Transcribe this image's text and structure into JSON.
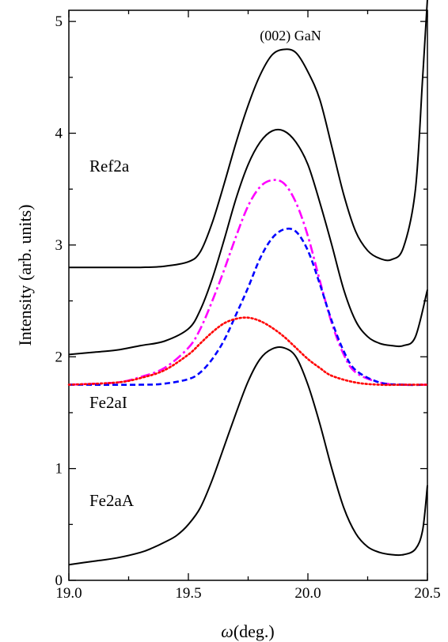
{
  "chart_data": {
    "type": "line",
    "title": "",
    "xlabel_symbol": "ω",
    "xlabel_unit": "(deg.)",
    "ylabel": "Intensity (arb. units)",
    "xlim": [
      19.0,
      20.5
    ],
    "ylim": [
      0,
      5.1
    ],
    "x_ticks": [
      "19.0",
      "19.5",
      "20.0",
      "20.5"
    ],
    "y_ticks": [
      "0",
      "1",
      "2",
      "3",
      "4",
      "5"
    ],
    "grid": false,
    "annotations": {
      "peak": "(002) GaN",
      "ref": "Ref2a",
      "fe2ai": "Fe2aI",
      "fe2aa": "Fe2aA"
    },
    "series": [
      {
        "color": "#000000",
        "style": "solid",
        "x": [
          19.0,
          19.1,
          19.2,
          19.3,
          19.4,
          19.5,
          19.55,
          19.6,
          19.65,
          19.7,
          19.75,
          19.8,
          19.85,
          19.9,
          19.95,
          20.0,
          20.05,
          20.1,
          20.15,
          20.2,
          20.25,
          20.3,
          20.35,
          20.4,
          20.45,
          20.48,
          20.5
        ],
        "y": [
          2.8,
          2.8,
          2.8,
          2.8,
          2.81,
          2.85,
          2.94,
          3.2,
          3.55,
          3.92,
          4.25,
          4.52,
          4.7,
          4.75,
          4.72,
          4.55,
          4.3,
          3.88,
          3.45,
          3.12,
          2.95,
          2.88,
          2.87,
          2.98,
          3.5,
          4.5,
          5.2
        ]
      },
      {
        "color": "#000000",
        "style": "solid",
        "x": [
          19.0,
          19.1,
          19.2,
          19.3,
          19.4,
          19.5,
          19.55,
          19.6,
          19.65,
          19.7,
          19.75,
          19.8,
          19.85,
          19.9,
          19.95,
          20.0,
          20.05,
          20.1,
          20.15,
          20.2,
          20.25,
          20.3,
          20.35,
          20.4,
          20.45,
          20.5
        ],
        "y": [
          2.02,
          2.04,
          2.06,
          2.1,
          2.14,
          2.25,
          2.42,
          2.7,
          3.05,
          3.42,
          3.72,
          3.92,
          4.02,
          4.02,
          3.92,
          3.72,
          3.38,
          3.0,
          2.6,
          2.32,
          2.18,
          2.12,
          2.1,
          2.1,
          2.18,
          2.6
        ]
      },
      {
        "color": "#ff00ff",
        "style": "dashdot",
        "x": [
          19.0,
          19.2,
          19.3,
          19.4,
          19.5,
          19.55,
          19.6,
          19.65,
          19.7,
          19.75,
          19.8,
          19.85,
          19.9,
          19.95,
          20.0,
          20.05,
          20.1,
          20.15,
          20.2,
          20.3,
          20.4,
          20.5
        ],
        "y": [
          1.75,
          1.77,
          1.82,
          1.9,
          2.08,
          2.25,
          2.5,
          2.78,
          3.08,
          3.35,
          3.52,
          3.58,
          3.55,
          3.38,
          3.08,
          2.68,
          2.3,
          2.02,
          1.86,
          1.77,
          1.75,
          1.75
        ]
      },
      {
        "color": "#0000ff",
        "style": "dashed",
        "x": [
          19.0,
          19.3,
          19.4,
          19.5,
          19.55,
          19.6,
          19.65,
          19.7,
          19.75,
          19.8,
          19.85,
          19.9,
          19.95,
          20.0,
          20.05,
          20.1,
          20.15,
          20.2,
          20.3,
          20.4,
          20.5
        ],
        "y": [
          1.75,
          1.75,
          1.76,
          1.8,
          1.86,
          1.98,
          2.15,
          2.38,
          2.62,
          2.88,
          3.06,
          3.14,
          3.12,
          2.95,
          2.65,
          2.32,
          2.05,
          1.88,
          1.77,
          1.75,
          1.75
        ]
      },
      {
        "color": "#ff0000",
        "style": "dotted",
        "x": [
          19.0,
          19.2,
          19.3,
          19.4,
          19.5,
          19.55,
          19.6,
          19.65,
          19.7,
          19.75,
          19.8,
          19.85,
          19.9,
          19.95,
          20.0,
          20.05,
          20.1,
          20.2,
          20.3,
          20.4,
          20.5
        ],
        "y": [
          1.75,
          1.77,
          1.81,
          1.88,
          2.02,
          2.12,
          2.22,
          2.3,
          2.34,
          2.35,
          2.32,
          2.26,
          2.18,
          2.08,
          1.98,
          1.9,
          1.83,
          1.77,
          1.75,
          1.75,
          1.75
        ]
      },
      {
        "color": "#000000",
        "style": "solid",
        "x": [
          19.0,
          19.1,
          19.2,
          19.3,
          19.35,
          19.4,
          19.45,
          19.5,
          19.55,
          19.6,
          19.65,
          19.7,
          19.75,
          19.8,
          19.85,
          19.9,
          19.95,
          20.0,
          20.05,
          20.1,
          20.15,
          20.2,
          20.25,
          20.3,
          20.35,
          20.4,
          20.45,
          20.48,
          20.5
        ],
        "y": [
          0.14,
          0.17,
          0.2,
          0.25,
          0.29,
          0.34,
          0.4,
          0.5,
          0.65,
          0.9,
          1.2,
          1.5,
          1.78,
          1.98,
          2.07,
          2.08,
          2.0,
          1.75,
          1.4,
          1.0,
          0.65,
          0.42,
          0.3,
          0.25,
          0.23,
          0.23,
          0.28,
          0.45,
          0.85
        ]
      }
    ]
  }
}
